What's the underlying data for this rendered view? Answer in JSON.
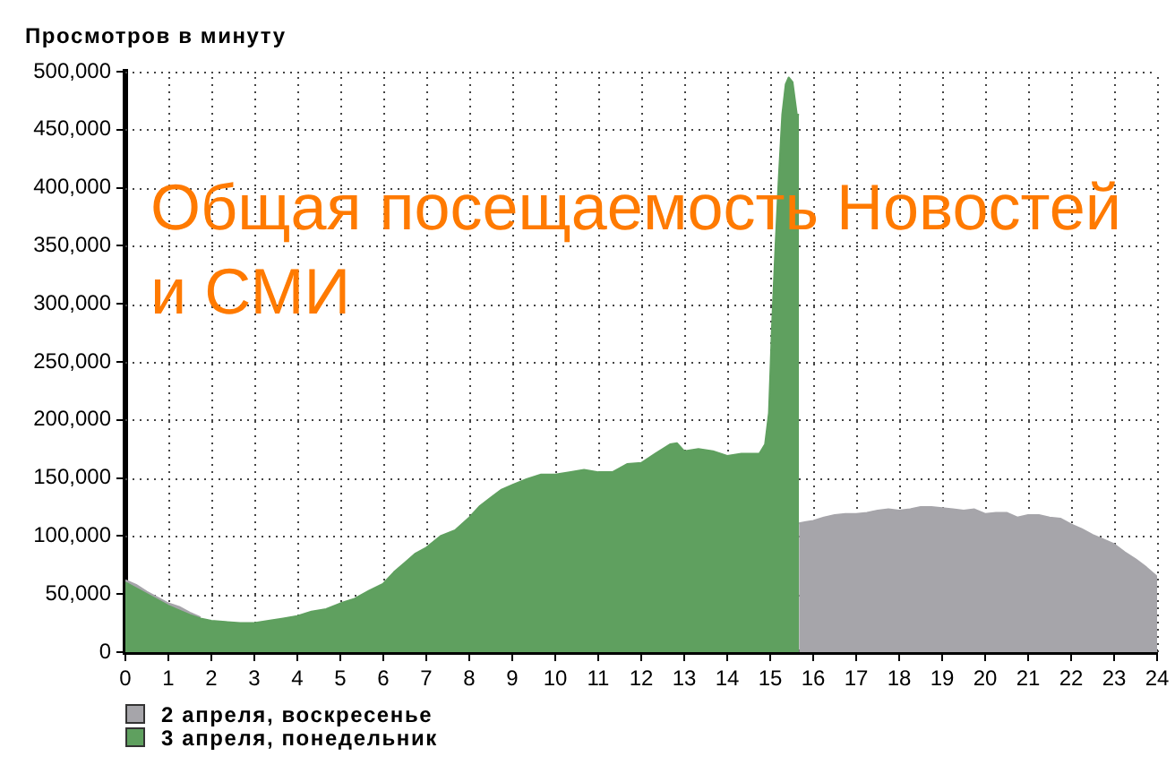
{
  "chart_data": {
    "type": "area",
    "title": "Общая посещаемость Новостей и СМИ",
    "ylabel": "Просмотров в минуту",
    "xlim": [
      0,
      24
    ],
    "xticks": [
      0,
      1,
      2,
      3,
      4,
      5,
      6,
      7,
      8,
      9,
      10,
      11,
      12,
      13,
      14,
      15,
      16,
      17,
      18,
      19,
      20,
      21,
      22,
      23,
      24
    ],
    "ylim": [
      0,
      500000
    ],
    "yticks": [
      0,
      {
        "value": 50000,
        "label": "50,000"
      },
      {
        "value": 100000,
        "label": "100,000"
      },
      {
        "value": 150000,
        "label": "150,000"
      },
      {
        "value": 200000,
        "label": "200,000"
      },
      {
        "value": 250000,
        "label": "250,000"
      },
      {
        "value": 300000,
        "label": "300,000"
      },
      {
        "value": 350000,
        "label": "350,000"
      },
      {
        "value": 400000,
        "label": "400,000"
      },
      {
        "value": 450000,
        "label": "450,000"
      },
      {
        "value": 500000,
        "label": "500,000"
      }
    ],
    "grid": true,
    "legend": "bottom left",
    "series": [
      {
        "name": "2 апреля, воскресенье",
        "color": "#a6a5aa",
        "x": [
          0,
          0.25,
          0.5,
          0.75,
          1,
          1.25,
          1.5,
          1.75,
          2,
          15.67,
          15.83,
          16,
          16.25,
          16.5,
          16.75,
          17,
          17.25,
          17.5,
          17.75,
          18,
          18.25,
          18.5,
          18.75,
          19,
          19.25,
          19.5,
          19.75,
          20,
          20.25,
          20.5,
          20.75,
          21,
          21.25,
          21.5,
          21.75,
          22,
          22.25,
          22.5,
          22.75,
          23,
          23.25,
          23.5,
          23.75,
          24
        ],
        "values": [
          62000,
          58000,
          52000,
          47000,
          42000,
          39000,
          34000,
          30000,
          null,
          111000,
          112000,
          113000,
          116000,
          118000,
          119000,
          119000,
          120000,
          122000,
          123000,
          122000,
          123000,
          125000,
          125000,
          124000,
          123000,
          122000,
          123000,
          119000,
          120000,
          120000,
          116000,
          118000,
          118000,
          116000,
          115000,
          110000,
          106000,
          101000,
          97000,
          93000,
          86000,
          80000,
          73000,
          65000
        ]
      },
      {
        "name": "3 апреля, понедельник",
        "color": "#5fa05f",
        "x": [
          0,
          0.25,
          0.5,
          0.75,
          1,
          1.25,
          1.5,
          1.75,
          2,
          2.33,
          2.67,
          3,
          3.33,
          3.67,
          4,
          4.33,
          4.67,
          5,
          5.33,
          5.67,
          6,
          6.25,
          6.5,
          6.75,
          7,
          7.33,
          7.67,
          8,
          8.25,
          8.5,
          8.75,
          9,
          9.33,
          9.67,
          10,
          10.33,
          10.67,
          11,
          11.33,
          11.67,
          12,
          12.33,
          12.67,
          12.83,
          13,
          13.33,
          13.67,
          14,
          14.33,
          14.75,
          14.88,
          14.97,
          15.04,
          15.12,
          15.2,
          15.28,
          15.36,
          15.43,
          15.52,
          15.62,
          15.67
        ],
        "values": [
          60000,
          55000,
          50000,
          45000,
          40000,
          36000,
          32000,
          29000,
          27000,
          26000,
          25000,
          25000,
          27000,
          29000,
          31000,
          35000,
          37000,
          42000,
          46000,
          53000,
          59000,
          69000,
          77000,
          85000,
          90000,
          100000,
          105000,
          116000,
          126000,
          133000,
          140000,
          144000,
          149000,
          153000,
          153000,
          155000,
          157000,
          155000,
          155000,
          162000,
          163000,
          171000,
          179000,
          180000,
          173000,
          175000,
          173000,
          169000,
          171000,
          171000,
          179000,
          206000,
          279000,
          347000,
          409000,
          463000,
          489000,
          495000,
          491000,
          463000,
          463000
        ]
      }
    ]
  }
}
